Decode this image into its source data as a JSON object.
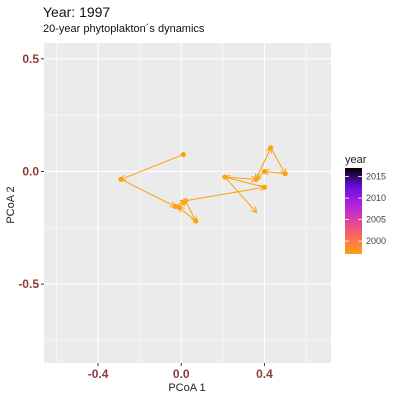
{
  "title": "Year: 1997",
  "subtitle": "20-year phytoplakton´s dynamics",
  "chart_data": {
    "type": "scatter",
    "title": "Year: 1997",
    "subtitle": "20-year phytoplakton´s dynamics",
    "xlabel": "PCoA 1",
    "ylabel": "PCoA 2",
    "xlim": [
      -0.66,
      0.72
    ],
    "ylim": [
      -0.85,
      0.57
    ],
    "x_ticks": [
      -0.4,
      0.0,
      0.4
    ],
    "x_tick_labels": [
      "-0.4",
      "0.0",
      "0.4"
    ],
    "y_ticks": [
      -0.5,
      0.0,
      0.5
    ],
    "y_tick_labels": [
      "-0.5",
      "0.0",
      "0.5"
    ],
    "grid": true,
    "panel_background": "#ebebeb",
    "series_color": "#fea10d",
    "points": [
      {
        "x": 0.01,
        "y": 0.075
      },
      {
        "x": -0.29,
        "y": -0.035
      },
      {
        "x": -0.03,
        "y": -0.155
      },
      {
        "x": 0.02,
        "y": -0.13
      },
      {
        "x": 0.07,
        "y": -0.22
      },
      {
        "x": -0.01,
        "y": -0.16
      },
      {
        "x": 0.21,
        "y": -0.025
      },
      {
        "x": 0.4,
        "y": -0.07
      },
      {
        "x": 0.36,
        "y": -0.035
      },
      {
        "x": 0.4,
        "y": 0.0
      },
      {
        "x": 0.43,
        "y": 0.105
      },
      {
        "x": 0.5,
        "y": -0.01
      }
    ],
    "path_order": [
      0,
      1,
      2,
      3,
      4,
      5,
      3,
      7,
      6,
      8,
      10,
      11,
      9,
      8
    ],
    "arrows": [
      {
        "from": [
          0.21,
          -0.025
        ],
        "to": [
          0.36,
          -0.18
        ]
      },
      {
        "from": [
          0.43,
          0.105
        ],
        "to": [
          0.36,
          -0.035
        ]
      }
    ],
    "legend": {
      "title": "year",
      "position": "right",
      "ticks": [
        2000,
        2005,
        2010,
        2015
      ],
      "range": [
        1997,
        2017
      ],
      "gradient": [
        "#fea10d",
        "#f1537f",
        "#b725d8",
        "#6a0fe0",
        "#000000"
      ]
    }
  }
}
